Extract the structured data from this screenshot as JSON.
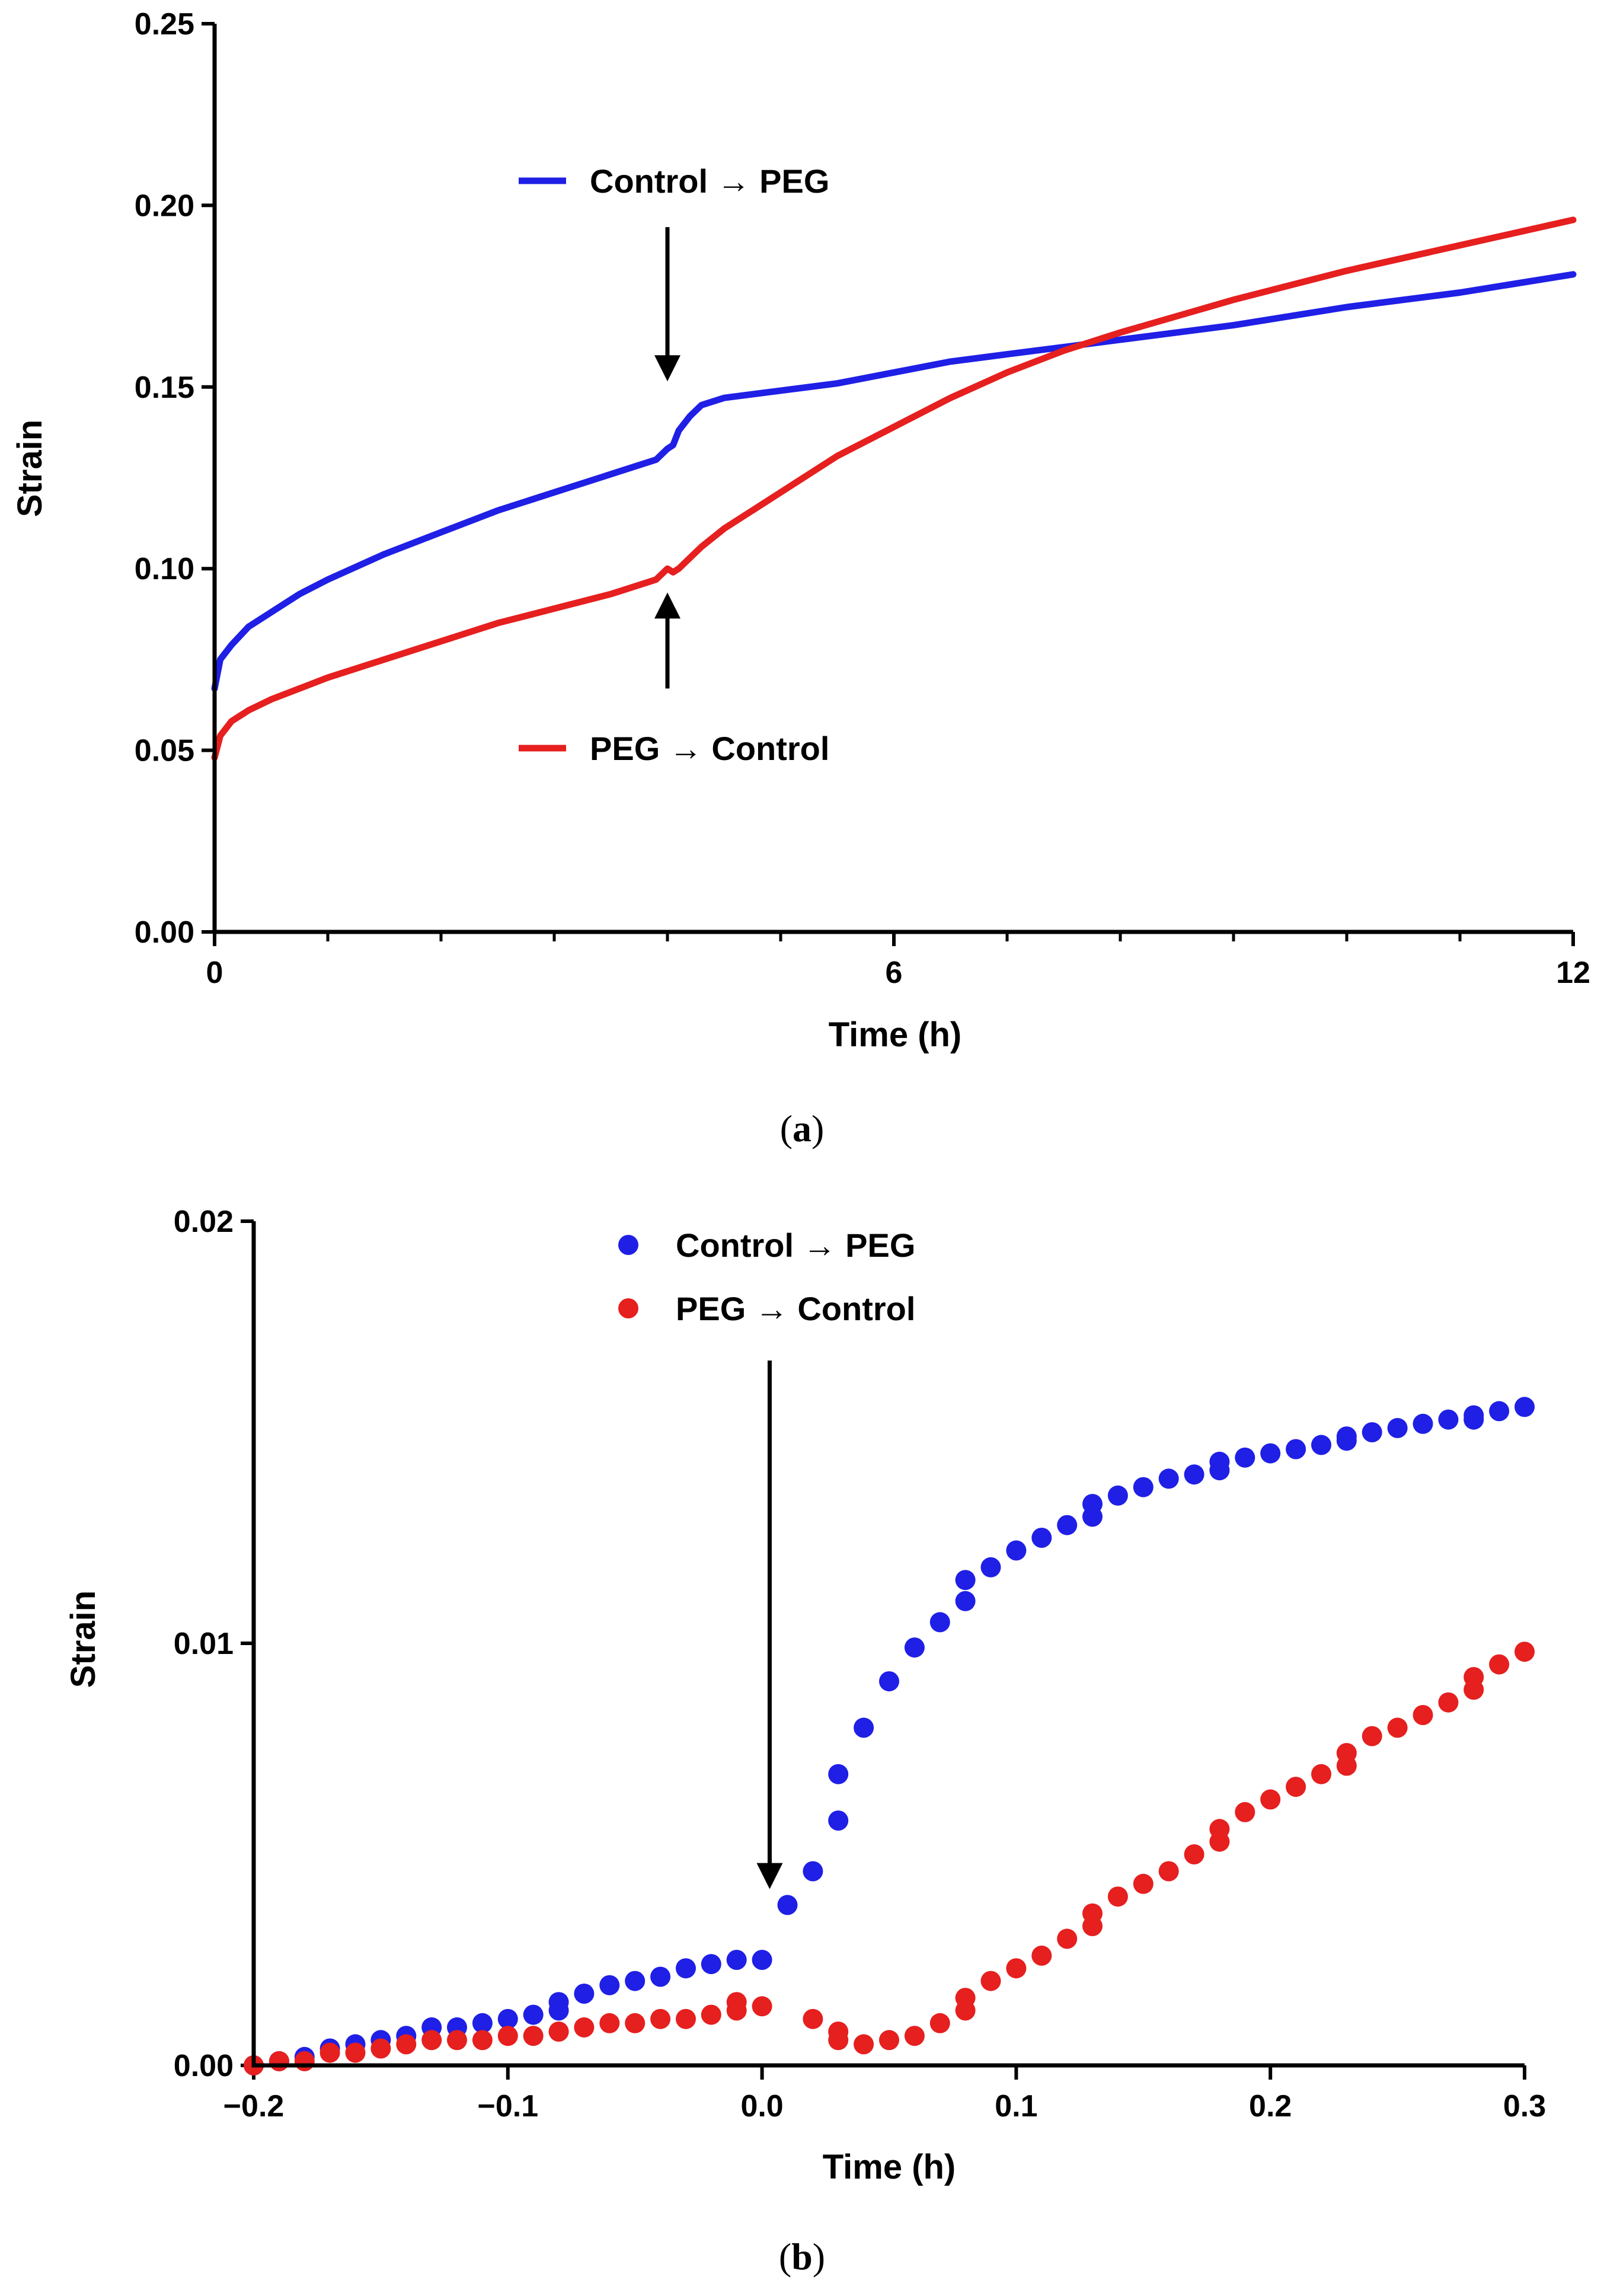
{
  "chart_data": [
    {
      "panel": "a",
      "type": "line",
      "caption": "(a)",
      "caption_letter": "a",
      "xlabel": "Time (h)",
      "ylabel": "Strain",
      "xlim": [
        0,
        12
      ],
      "ylim": [
        0,
        0.25
      ],
      "x_ticks": [
        0,
        6,
        12
      ],
      "x_minor_ticks": [
        1,
        2,
        3,
        4,
        5,
        7,
        8,
        9,
        10,
        11
      ],
      "y_ticks": [
        0.0,
        0.05,
        0.1,
        0.15,
        0.2,
        0.25
      ],
      "y_tick_labels": [
        "0.00",
        "0.05",
        "0.10",
        "0.15",
        "0.20",
        "0.25"
      ],
      "grid": false,
      "series": [
        {
          "name": "Control → PEG",
          "color": "#1f1fe6",
          "x": [
            0,
            0.05,
            0.15,
            0.3,
            0.5,
            0.75,
            1,
            1.5,
            2,
            2.5,
            3,
            3.5,
            3.9,
            4.0,
            4.05,
            4.1,
            4.2,
            4.3,
            4.5,
            5,
            5.5,
            6,
            6.5,
            7,
            7.5,
            8,
            9,
            10,
            11,
            12
          ],
          "y": [
            0.067,
            0.075,
            0.079,
            0.084,
            0.088,
            0.093,
            0.097,
            0.104,
            0.11,
            0.116,
            0.121,
            0.126,
            0.13,
            0.133,
            0.134,
            0.138,
            0.142,
            0.145,
            0.147,
            0.149,
            0.151,
            0.154,
            0.157,
            0.159,
            0.161,
            0.163,
            0.167,
            0.172,
            0.176,
            0.181
          ]
        },
        {
          "name": "PEG → Control",
          "color": "#e61f1f",
          "x": [
            0,
            0.05,
            0.15,
            0.3,
            0.5,
            0.75,
            1,
            1.5,
            2,
            2.5,
            3,
            3.5,
            3.9,
            4.0,
            4.05,
            4.1,
            4.2,
            4.3,
            4.5,
            5,
            5.5,
            6,
            6.5,
            7,
            7.5,
            8,
            9,
            10,
            11,
            12
          ],
          "y": [
            0.048,
            0.054,
            0.058,
            0.061,
            0.064,
            0.067,
            0.07,
            0.075,
            0.08,
            0.085,
            0.089,
            0.093,
            0.097,
            0.1,
            0.099,
            0.1,
            0.103,
            0.106,
            0.111,
            0.121,
            0.131,
            0.139,
            0.147,
            0.154,
            0.16,
            0.165,
            0.174,
            0.182,
            0.189,
            0.196
          ]
        }
      ],
      "annotations": [
        {
          "type": "arrow-down",
          "x": 4.0,
          "y_from": 0.194,
          "y_to": 0.153
        },
        {
          "type": "arrow-up",
          "x": 4.0,
          "y_from": 0.067,
          "y_to": 0.092
        }
      ],
      "legend": [
        {
          "label": "Control → PEG",
          "color": "#1f1fe6",
          "position": "top-middle"
        },
        {
          "label": "PEG → Control",
          "color": "#e61f1f",
          "position": "bottom-middle"
        }
      ]
    },
    {
      "panel": "b",
      "type": "scatter",
      "caption": "(b)",
      "caption_letter": "b",
      "xlabel": "Time (h)",
      "ylabel": "Strain",
      "xlim": [
        -0.2,
        0.3
      ],
      "ylim": [
        0,
        0.02
      ],
      "x_ticks": [
        -0.2,
        -0.1,
        0.0,
        0.1,
        0.2,
        0.3
      ],
      "x_tick_labels": [
        "−0.2",
        "−0.1",
        "0.0",
        "0.1",
        "0.2",
        "0.3"
      ],
      "y_ticks": [
        0.0,
        0.01,
        0.02
      ],
      "y_tick_labels": [
        "0.00",
        "0.01",
        "0.02"
      ],
      "grid": false,
      "series": [
        {
          "name": "Control → PEG",
          "color": "#1f1fe6",
          "x": [
            -0.2,
            -0.19,
            -0.18,
            -0.17,
            -0.16,
            -0.15,
            -0.14,
            -0.13,
            -0.12,
            -0.11,
            -0.1,
            -0.09,
            -0.08,
            -0.08,
            -0.07,
            -0.06,
            -0.05,
            -0.04,
            -0.03,
            -0.02,
            -0.01,
            0.0,
            0.01,
            0.02,
            0.03,
            0.03,
            0.04,
            0.05,
            0.06,
            0.07,
            0.08,
            0.08,
            0.09,
            0.1,
            0.11,
            0.12,
            0.13,
            0.13,
            0.14,
            0.15,
            0.16,
            0.17,
            0.18,
            0.18,
            0.19,
            0.2,
            0.21,
            0.22,
            0.23,
            0.23,
            0.24,
            0.25,
            0.26,
            0.27,
            0.28,
            0.28,
            0.29,
            0.3
          ],
          "y": [
            0.0,
            0.0001,
            0.0002,
            0.0004,
            0.0005,
            0.0006,
            0.0007,
            0.0009,
            0.0009,
            0.001,
            0.0011,
            0.0012,
            0.0013,
            0.0015,
            0.0017,
            0.0019,
            0.002,
            0.0021,
            0.0023,
            0.0024,
            0.0025,
            0.0025,
            0.0038,
            0.0046,
            0.0058,
            0.0069,
            0.008,
            0.0091,
            0.0099,
            0.0105,
            0.011,
            0.0115,
            0.0118,
            0.0122,
            0.0125,
            0.0128,
            0.013,
            0.0133,
            0.0135,
            0.0137,
            0.0139,
            0.014,
            0.0141,
            0.0143,
            0.0144,
            0.0145,
            0.0146,
            0.0147,
            0.0148,
            0.0149,
            0.015,
            0.0151,
            0.0152,
            0.0153,
            0.0153,
            0.0154,
            0.0155,
            0.0156
          ]
        },
        {
          "name": "PEG → Control",
          "color": "#e61f1f",
          "x": [
            -0.2,
            -0.19,
            -0.18,
            -0.17,
            -0.16,
            -0.15,
            -0.14,
            -0.13,
            -0.12,
            -0.11,
            -0.1,
            -0.09,
            -0.08,
            -0.07,
            -0.06,
            -0.05,
            -0.04,
            -0.03,
            -0.02,
            -0.01,
            -0.01,
            0.0,
            0.02,
            0.03,
            0.03,
            0.04,
            0.05,
            0.06,
            0.07,
            0.08,
            0.08,
            0.09,
            0.1,
            0.11,
            0.12,
            0.13,
            0.13,
            0.14,
            0.15,
            0.16,
            0.17,
            0.18,
            0.18,
            0.19,
            0.2,
            0.21,
            0.22,
            0.23,
            0.23,
            0.24,
            0.25,
            0.26,
            0.27,
            0.28,
            0.28,
            0.29,
            0.3
          ],
          "y": [
            0.0,
            0.0001,
            0.0001,
            0.0003,
            0.0003,
            0.0004,
            0.0005,
            0.0006,
            0.0006,
            0.0006,
            0.0007,
            0.0007,
            0.0008,
            0.0009,
            0.001,
            0.001,
            0.0011,
            0.0011,
            0.0012,
            0.0013,
            0.0015,
            0.0014,
            0.0011,
            0.0006,
            0.0008,
            0.0005,
            0.0006,
            0.0007,
            0.001,
            0.0013,
            0.0016,
            0.002,
            0.0023,
            0.0026,
            0.003,
            0.0033,
            0.0036,
            0.004,
            0.0043,
            0.0046,
            0.005,
            0.0053,
            0.0056,
            0.006,
            0.0063,
            0.0066,
            0.0069,
            0.0071,
            0.0074,
            0.0078,
            0.008,
            0.0083,
            0.0086,
            0.0089,
            0.0092,
            0.0095,
            0.0098
          ]
        }
      ],
      "annotations": [
        {
          "type": "arrow-down",
          "x": 0.003,
          "y_from": 0.0167,
          "y_to": 0.0043
        }
      ],
      "legend": [
        {
          "label": "Control → PEG",
          "color": "#1f1fe6",
          "position": "top-middle"
        },
        {
          "label": "PEG → Control",
          "color": "#e61f1f",
          "position": "top-middle"
        }
      ]
    }
  ]
}
